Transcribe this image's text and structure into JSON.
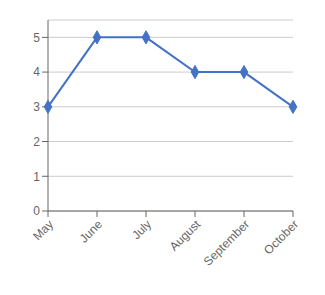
{
  "chart_data": {
    "type": "line",
    "categories": [
      "May",
      "June",
      "July",
      "August",
      "September",
      "October"
    ],
    "values": [
      3,
      5,
      5,
      4,
      4,
      3
    ],
    "color": "#4472C4",
    "marker": "diamond",
    "ylim": [
      0,
      5.5
    ],
    "yticks": [
      0,
      1,
      2,
      3,
      4,
      5
    ],
    "grid": true
  }
}
